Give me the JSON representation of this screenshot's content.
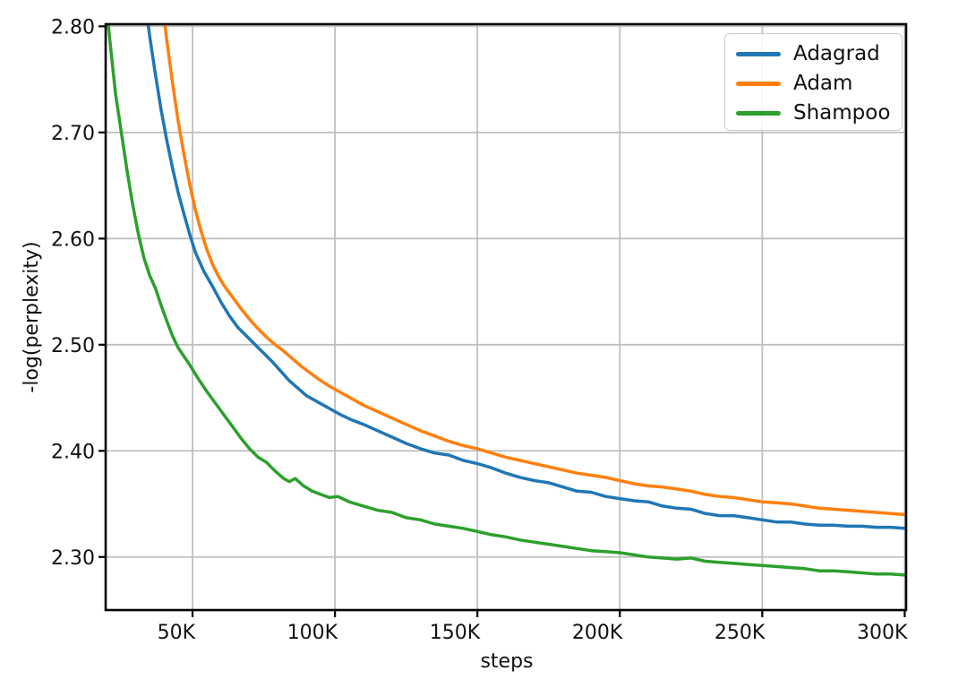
{
  "chart_data": {
    "type": "line",
    "title": "",
    "xlabel": "steps",
    "ylabel": "-log(perplexity)",
    "xlim": [
      19500,
      300500
    ],
    "ylim": [
      2.25,
      2.802
    ],
    "grid": true,
    "legend": {
      "position": "upper right"
    },
    "x_ticks": {
      "values": [
        50000,
        100000,
        150000,
        200000,
        250000,
        300000
      ],
      "labels": [
        "50K",
        "100K",
        "150K",
        "200K",
        "250K",
        "300K"
      ]
    },
    "y_ticks": {
      "values": [
        2.3,
        2.4,
        2.5,
        2.6,
        2.7,
        2.8
      ],
      "labels": [
        "2.30",
        "2.40",
        "2.50",
        "2.60",
        "2.70",
        "2.80"
      ]
    },
    "series": [
      {
        "name": "Adagrad",
        "color": "#1f77b4",
        "x": [
          33000,
          35000,
          37000,
          39000,
          41000,
          43000,
          45000,
          47000,
          49000,
          51000,
          54000,
          57000,
          60000,
          63000,
          66000,
          69000,
          72000,
          75000,
          78000,
          81000,
          84000,
          87000,
          90000,
          94000,
          98000,
          102000,
          106000,
          110000,
          115000,
          120000,
          125000,
          130000,
          135000,
          140000,
          145000,
          150000,
          155000,
          160000,
          165000,
          170000,
          175000,
          180000,
          185000,
          190000,
          195000,
          200000,
          205000,
          210000,
          215000,
          220000,
          225000,
          230000,
          235000,
          240000,
          245000,
          250000,
          255000,
          260000,
          265000,
          270000,
          275000,
          280000,
          285000,
          290000,
          295000,
          300000
        ],
        "y": [
          2.83,
          2.79,
          2.754,
          2.721,
          2.692,
          2.666,
          2.643,
          2.623,
          2.604,
          2.587,
          2.569,
          2.555,
          2.54,
          2.527,
          2.516,
          2.508,
          2.5,
          2.492,
          2.484,
          2.475,
          2.466,
          2.459,
          2.452,
          2.446,
          2.44,
          2.434,
          2.429,
          2.425,
          2.419,
          2.413,
          2.407,
          2.402,
          2.398,
          2.396,
          2.391,
          2.388,
          2.384,
          2.379,
          2.375,
          2.372,
          2.37,
          2.366,
          2.362,
          2.361,
          2.357,
          2.355,
          2.353,
          2.352,
          2.348,
          2.346,
          2.345,
          2.341,
          2.339,
          2.339,
          2.337,
          2.335,
          2.333,
          2.333,
          2.331,
          2.33,
          2.33,
          2.329,
          2.329,
          2.328,
          2.328,
          2.327
        ]
      },
      {
        "name": "Adam",
        "color": "#ff7f0e",
        "x": [
          39000,
          41000,
          43000,
          45000,
          47000,
          49000,
          51000,
          53000,
          55000,
          57000,
          59000,
          61000,
          64000,
          67000,
          70000,
          73000,
          76000,
          79000,
          82000,
          85000,
          88000,
          91000,
          94000,
          98000,
          102000,
          106000,
          110000,
          115000,
          120000,
          125000,
          130000,
          135000,
          140000,
          145000,
          150000,
          155000,
          160000,
          165000,
          170000,
          175000,
          180000,
          185000,
          190000,
          195000,
          200000,
          205000,
          210000,
          215000,
          220000,
          225000,
          230000,
          235000,
          240000,
          245000,
          250000,
          255000,
          260000,
          265000,
          270000,
          275000,
          280000,
          285000,
          290000,
          295000,
          300000
        ],
        "y": [
          2.83,
          2.786,
          2.746,
          2.71,
          2.679,
          2.651,
          2.627,
          2.607,
          2.59,
          2.576,
          2.565,
          2.556,
          2.545,
          2.534,
          2.524,
          2.515,
          2.507,
          2.5,
          2.494,
          2.487,
          2.48,
          2.474,
          2.468,
          2.461,
          2.455,
          2.449,
          2.443,
          2.437,
          2.431,
          2.425,
          2.419,
          2.414,
          2.409,
          2.405,
          2.402,
          2.398,
          2.394,
          2.391,
          2.388,
          2.385,
          2.382,
          2.379,
          2.377,
          2.375,
          2.372,
          2.369,
          2.367,
          2.366,
          2.364,
          2.362,
          2.359,
          2.357,
          2.356,
          2.354,
          2.352,
          2.351,
          2.35,
          2.348,
          2.346,
          2.345,
          2.344,
          2.343,
          2.342,
          2.341,
          2.34
        ]
      },
      {
        "name": "Shampoo",
        "color": "#2ca02c",
        "x": [
          19000,
          21000,
          23000,
          25000,
          27000,
          29000,
          31000,
          33000,
          35000,
          37000,
          39000,
          41000,
          43000,
          45000,
          47000,
          49000,
          52000,
          55000,
          58000,
          61000,
          64000,
          67000,
          70000,
          73000,
          76000,
          79000,
          82000,
          84000,
          86000,
          89000,
          92000,
          95000,
          98000,
          101000,
          105000,
          110000,
          115000,
          120000,
          125000,
          130000,
          135000,
          140000,
          145000,
          150000,
          155000,
          160000,
          165000,
          170000,
          175000,
          180000,
          185000,
          190000,
          195000,
          200000,
          205000,
          210000,
          215000,
          220000,
          225000,
          230000,
          235000,
          240000,
          245000,
          250000,
          255000,
          260000,
          265000,
          270000,
          275000,
          280000,
          285000,
          290000,
          295000,
          300000
        ],
        "y": [
          2.84,
          2.786,
          2.736,
          2.7,
          2.664,
          2.632,
          2.604,
          2.581,
          2.565,
          2.553,
          2.537,
          2.522,
          2.508,
          2.497,
          2.489,
          2.481,
          2.468,
          2.456,
          2.445,
          2.434,
          2.423,
          2.412,
          2.402,
          2.394,
          2.389,
          2.381,
          2.374,
          2.371,
          2.374,
          2.367,
          2.362,
          2.359,
          2.356,
          2.357,
          2.352,
          2.348,
          2.344,
          2.342,
          2.337,
          2.335,
          2.331,
          2.329,
          2.327,
          2.324,
          2.321,
          2.319,
          2.316,
          2.314,
          2.312,
          2.31,
          2.308,
          2.306,
          2.305,
          2.304,
          2.302,
          2.3,
          2.299,
          2.298,
          2.299,
          2.296,
          2.295,
          2.294,
          2.293,
          2.292,
          2.291,
          2.29,
          2.289,
          2.287,
          2.287,
          2.286,
          2.285,
          2.284,
          2.284,
          2.283
        ]
      }
    ]
  }
}
